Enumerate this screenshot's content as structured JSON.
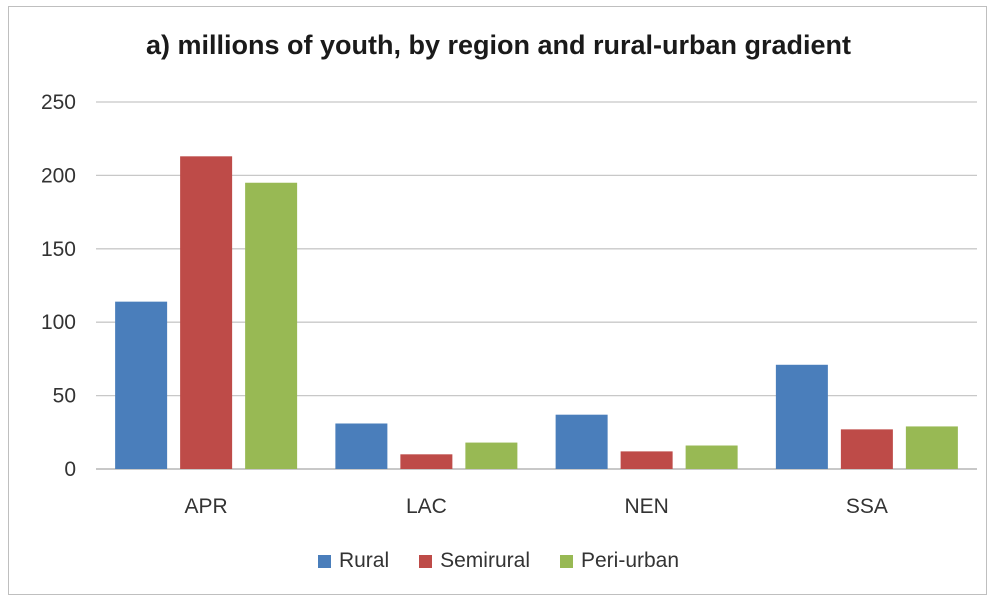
{
  "chart_data": {
    "type": "bar",
    "title": "a) millions of youth, by region and rural-urban gradient",
    "categories": [
      "APR",
      "LAC",
      "NEN",
      "SSA"
    ],
    "series": [
      {
        "name": "Rural",
        "color": "#4a7ebb",
        "values": [
          114,
          31,
          37,
          71
        ]
      },
      {
        "name": "Semirural",
        "color": "#be4b48",
        "values": [
          213,
          10,
          12,
          27
        ]
      },
      {
        "name": "Peri-urban",
        "color": "#98b954",
        "values": [
          195,
          18,
          16,
          29
        ]
      }
    ],
    "ylim": [
      0,
      250
    ],
    "yticks": [
      "0",
      "50",
      "100",
      "150",
      "200",
      "250"
    ],
    "grid": true,
    "legend_position": "bottom"
  }
}
